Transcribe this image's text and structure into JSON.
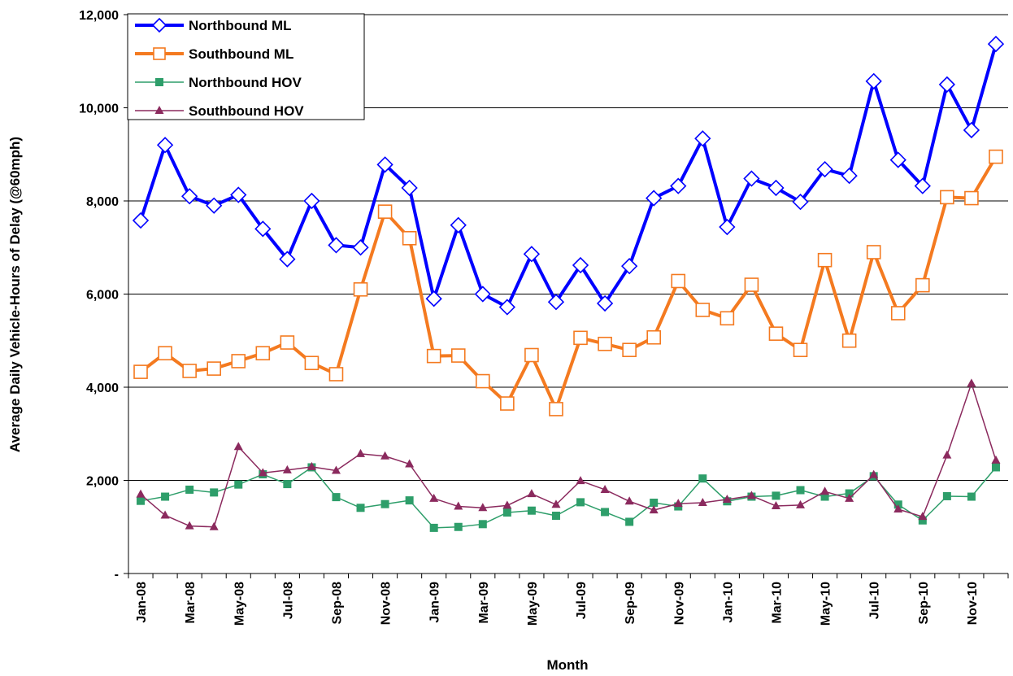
{
  "chart_data": {
    "type": "line",
    "y_label": "Average Daily Vehicle-Hours of Delay (@60mph)",
    "x_label": "Month",
    "categories": [
      "Jan-08",
      null,
      "Mar-08",
      null,
      "May-08",
      null,
      "Jul-08",
      null,
      "Sep-08",
      null,
      "Nov-08",
      null,
      "Jan-09",
      null,
      "Mar-09",
      null,
      "May-09",
      null,
      "Jul-09",
      null,
      "Sep-09",
      null,
      "Nov-09",
      null,
      "Jan-10",
      null,
      "Mar-10",
      null,
      "May-10",
      null,
      "Jul-10",
      null,
      "Sep-10",
      null,
      "Nov-10",
      null
    ],
    "ylim": [
      0,
      12000
    ],
    "yticks": [
      {
        "value": 0,
        "label": "-"
      },
      {
        "value": 2000,
        "label": "2,000"
      },
      {
        "value": 4000,
        "label": "4,000"
      },
      {
        "value": 6000,
        "label": "6,000"
      },
      {
        "value": 8000,
        "label": "8,000"
      },
      {
        "value": 10000,
        "label": "10,000"
      },
      {
        "value": 12000,
        "label": "12,000"
      }
    ],
    "grid": true,
    "legend": "upper left",
    "series": [
      {
        "name": "Northbound ML",
        "color": "#0000ff",
        "marker": "open-diamond",
        "line_width": 4,
        "values": [
          7580,
          9200,
          8100,
          7900,
          8130,
          7400,
          6750,
          8000,
          7050,
          7000,
          8780,
          8280,
          5900,
          7480,
          6000,
          5720,
          6860,
          5830,
          6620,
          5800,
          6600,
          8060,
          8320,
          9340,
          7440,
          8480,
          8280,
          7980,
          8680,
          8540,
          10570,
          8880,
          8320,
          10500,
          9520,
          11370
        ]
      },
      {
        "name": "Southbound ML",
        "color": "#f47a20",
        "marker": "open-square",
        "line_width": 4,
        "values": [
          4330,
          4730,
          4350,
          4400,
          4560,
          4730,
          4960,
          4520,
          4280,
          6100,
          7770,
          7200,
          4670,
          4680,
          4130,
          3650,
          4690,
          3530,
          5060,
          4930,
          4800,
          5070,
          6280,
          5660,
          5480,
          6200,
          5150,
          4800,
          6730,
          5000,
          6900,
          5590,
          6190,
          8080,
          8060,
          8950
        ]
      },
      {
        "name": "Northbound HOV",
        "color": "#2e9e6a",
        "marker": "square",
        "line_width": 1.5,
        "values": [
          1560,
          1650,
          1800,
          1740,
          1910,
          2130,
          1920,
          2280,
          1640,
          1410,
          1490,
          1570,
          980,
          1000,
          1060,
          1310,
          1350,
          1240,
          1530,
          1320,
          1110,
          1520,
          1440,
          2040,
          1550,
          1650,
          1670,
          1790,
          1650,
          1720,
          2090,
          1480,
          1140,
          1660,
          1650,
          2280
        ]
      },
      {
        "name": "Southbound HOV",
        "color": "#8b2a5e",
        "marker": "triangle",
        "line_width": 1.5,
        "values": [
          1700,
          1250,
          1020,
          1000,
          2720,
          2160,
          2220,
          2290,
          2210,
          2570,
          2520,
          2350,
          1610,
          1440,
          1410,
          1460,
          1710,
          1480,
          1990,
          1800,
          1550,
          1360,
          1500,
          1520,
          1590,
          1670,
          1450,
          1470,
          1760,
          1610,
          2120,
          1380,
          1220,
          2540,
          4080,
          2430
        ]
      }
    ]
  }
}
